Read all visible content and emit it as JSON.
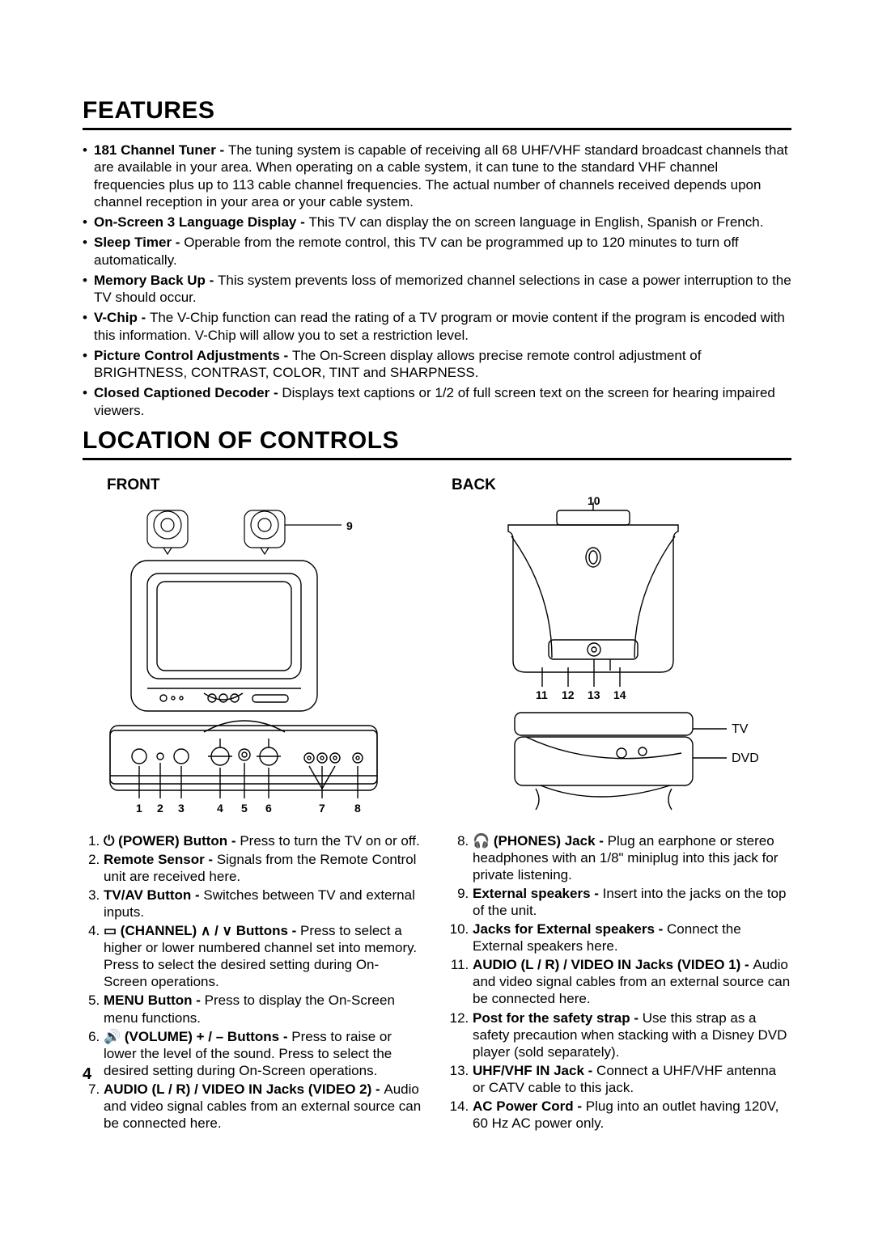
{
  "features": {
    "heading": "FEATURES",
    "items": [
      {
        "title": "181 Channel Tuner - ",
        "text": "The tuning system is capable of receiving all 68 UHF/VHF standard broadcast channels that are available in your area. When operating on a cable system, it can tune to the standard VHF channel frequencies plus up to 113 cable channel frequencies. The actual number of channels received depends upon channel reception in your area or your cable system."
      },
      {
        "title": "On-Screen 3 Language Display - ",
        "text": "This TV can display the on screen language in English, Spanish or French."
      },
      {
        "title": "Sleep Timer - ",
        "text": "Operable from the remote control, this TV can be programmed up to 120 minutes to turn off automatically."
      },
      {
        "title": "Memory Back Up - ",
        "text": "This system prevents loss of memorized channel selections in case a power interruption to the TV should occur."
      },
      {
        "title": "V-Chip - ",
        "text": "The V-Chip function can read the rating of a TV program or movie content if the program is encoded with this information. V-Chip will allow you to set a restriction level."
      },
      {
        "title": "Picture Control Adjustments - ",
        "text": "The On-Screen display allows precise remote control adjustment of BRIGHTNESS, CONTRAST, COLOR, TINT and SHARPNESS."
      },
      {
        "title": "Closed Captioned Decoder - ",
        "text": "Displays text captions or 1/2 of full screen text on the screen for hearing impaired viewers."
      }
    ]
  },
  "location": {
    "heading": "LOCATION OF CONTROLS",
    "front_label": "FRONT",
    "back_label": "BACK",
    "tv_label": "TV",
    "dvd_label": "DVD",
    "front_nums": [
      "1",
      "2",
      "3",
      "4",
      "5",
      "6",
      "7",
      "8",
      "9"
    ],
    "back_nums": [
      "10",
      "11",
      "12",
      "13",
      "14"
    ]
  },
  "controls_left": [
    {
      "title": "⏻ (POWER) Button - ",
      "text": "Press to turn the TV on or off."
    },
    {
      "title": "Remote Sensor - ",
      "text": "Signals from the Remote Control unit are received here."
    },
    {
      "title": "TV/AV Button - ",
      "text": "Switches between TV and external inputs."
    },
    {
      "title": "▭ (CHANNEL) ∧ / ∨ Buttons - ",
      "text": "Press to select a higher or lower numbered channel set into memory. Press to select the desired setting during On-Screen operations."
    },
    {
      "title": "MENU Button - ",
      "text": "Press to display the On-Screen menu functions."
    },
    {
      "title": "🔊 (VOLUME) + / – Buttons - ",
      "text": "Press to raise or lower the level of the sound. Press to select the desired setting during On-Screen operations."
    },
    {
      "title": "AUDIO (L / R) / VIDEO IN Jacks (VIDEO 2) - ",
      "text": "Audio and video signal cables from an external source can be connected here."
    }
  ],
  "controls_right": [
    {
      "title": "🎧 (PHONES) Jack - ",
      "text": "Plug an earphone or stereo headphones with an 1/8\" miniplug into this jack for private listening."
    },
    {
      "title": "External speakers - ",
      "text": "Insert into the jacks on the top of the unit."
    },
    {
      "title": "Jacks for External speakers - ",
      "text": "Connect the External speakers here."
    },
    {
      "title": "AUDIO (L / R) / VIDEO IN Jacks (VIDEO 1) - ",
      "text": "Audio and video signal cables from an external source can be connected here."
    },
    {
      "title": "Post for the safety strap - ",
      "text": "Use this strap as a safety precaution when stacking with a Disney DVD player (sold separately)."
    },
    {
      "title": "UHF/VHF IN Jack - ",
      "text": "Connect a UHF/VHF antenna or CATV cable to this jack."
    },
    {
      "title": "AC Power Cord - ",
      "text": "Plug into an outlet having 120V, 60 Hz AC power only."
    }
  ],
  "page_number": "4"
}
